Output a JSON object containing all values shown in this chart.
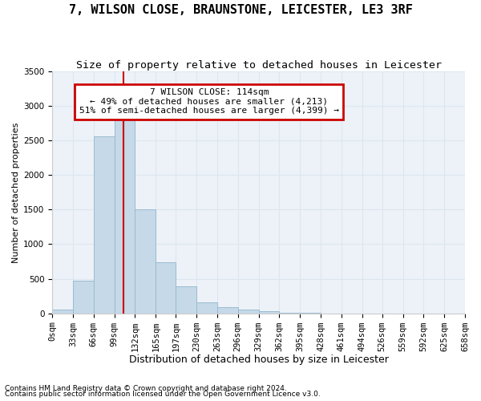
{
  "title1": "7, WILSON CLOSE, BRAUNSTONE, LEICESTER, LE3 3RF",
  "title2": "Size of property relative to detached houses in Leicester",
  "xlabel": "Distribution of detached houses by size in Leicester",
  "ylabel": "Number of detached properties",
  "footnote1": "Contains HM Land Registry data © Crown copyright and database right 2024.",
  "footnote2": "Contains public sector information licensed under the Open Government Licence v3.0.",
  "bar_color": "#c5d9e8",
  "bar_edge_color": "#9bbbd0",
  "grid_color": "#dce6f0",
  "vline_color": "#cc0000",
  "bg_color": "#edf2f8",
  "bin_edges": [
    0,
    33,
    66,
    99,
    132,
    165,
    197,
    230,
    263,
    296,
    329,
    362,
    395,
    428,
    461,
    494,
    526,
    559,
    592,
    625,
    658
  ],
  "bin_labels": [
    "0sqm",
    "33sqm",
    "66sqm",
    "99sqm",
    "132sqm",
    "165sqm",
    "197sqm",
    "230sqm",
    "263sqm",
    "296sqm",
    "329sqm",
    "362sqm",
    "395sqm",
    "428sqm",
    "461sqm",
    "494sqm",
    "526sqm",
    "559sqm",
    "592sqm",
    "625sqm",
    "658sqm"
  ],
  "bar_heights": [
    50,
    470,
    2560,
    2820,
    1500,
    740,
    390,
    160,
    90,
    50,
    30,
    10,
    5,
    0,
    0,
    0,
    0,
    0,
    0,
    0
  ],
  "vline_x": 114,
  "ann_line1": "7 WILSON CLOSE: 114sqm",
  "ann_line2": "← 49% of detached houses are smaller (4,213)",
  "ann_line3": "51% of semi-detached houses are larger (4,399) →",
  "ylim": [
    0,
    3500
  ],
  "yticks": [
    0,
    500,
    1000,
    1500,
    2000,
    2500,
    3000,
    3500
  ],
  "title1_fontsize": 11,
  "title2_fontsize": 9.5,
  "ann_fontsize": 8,
  "tick_fontsize": 7.5,
  "xlabel_fontsize": 9,
  "ylabel_fontsize": 8,
  "footnote_fontsize": 6.5
}
